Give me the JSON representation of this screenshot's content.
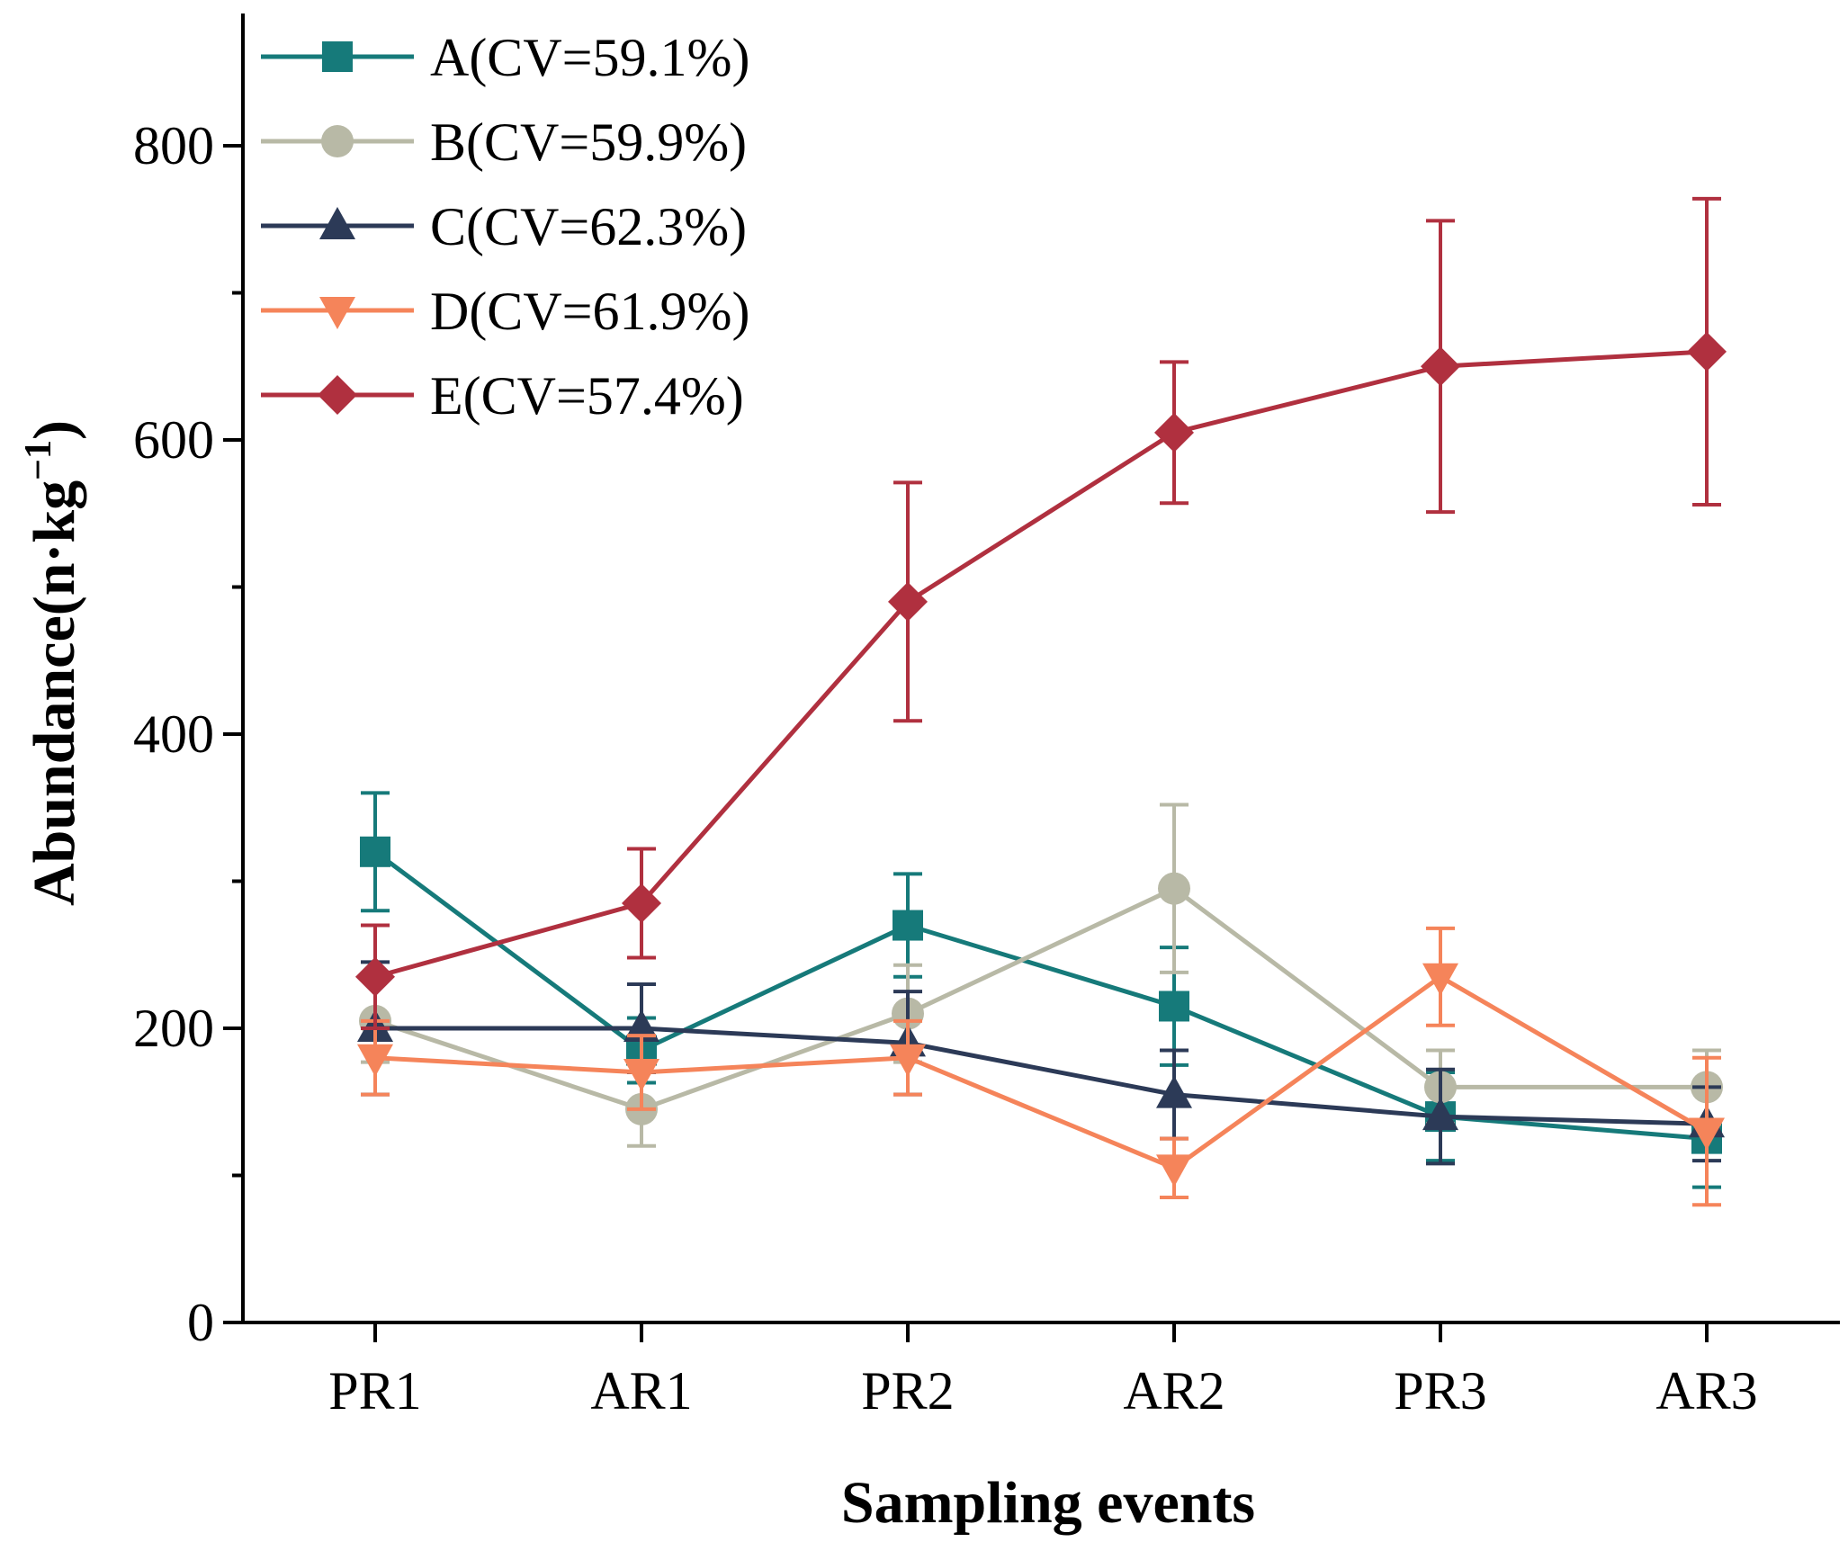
{
  "chart_data": {
    "type": "line",
    "title": "",
    "xlabel": "Sampling events",
    "ylabel": "Abundance(n·kg",
    "ylabel_sup": "−1",
    "ylabel_close": ")",
    "categories": [
      "PR1",
      "AR1",
      "PR2",
      "AR2",
      "PR3",
      "AR3"
    ],
    "ylim": [
      0,
      900
    ],
    "yticks": [
      0,
      200,
      400,
      600,
      800
    ],
    "grid": false,
    "legend": "top-left",
    "series": [
      {
        "name": "A(CV=59.1%)",
        "color": "#167a7a",
        "marker": "square",
        "values": [
          320,
          185,
          270,
          215,
          140,
          125
        ],
        "errors": [
          40,
          22,
          35,
          40,
          30,
          33
        ]
      },
      {
        "name": "B(CV=59.9%)",
        "color": "#b8b9a6",
        "marker": "circle",
        "values": [
          205,
          145,
          210,
          295,
          160,
          160
        ],
        "errors": [
          28,
          25,
          33,
          57,
          25,
          25
        ]
      },
      {
        "name": "C(CV=62.3%)",
        "color": "#2c3a57",
        "marker": "triangle-up",
        "values": [
          200,
          200,
          190,
          155,
          140,
          135
        ],
        "errors": [
          45,
          30,
          35,
          30,
          32,
          25
        ]
      },
      {
        "name": "D(CV=61.9%)",
        "color": "#f5845a",
        "marker": "triangle-down",
        "values": [
          180,
          170,
          180,
          105,
          235,
          130
        ],
        "errors": [
          25,
          25,
          25,
          20,
          33,
          50
        ]
      },
      {
        "name": "E(CV=57.4%)",
        "color": "#b0303f",
        "marker": "diamond",
        "values": [
          235,
          285,
          490,
          605,
          650,
          660
        ],
        "errors": [
          35,
          37,
          81,
          48,
          99,
          104
        ]
      }
    ]
  }
}
